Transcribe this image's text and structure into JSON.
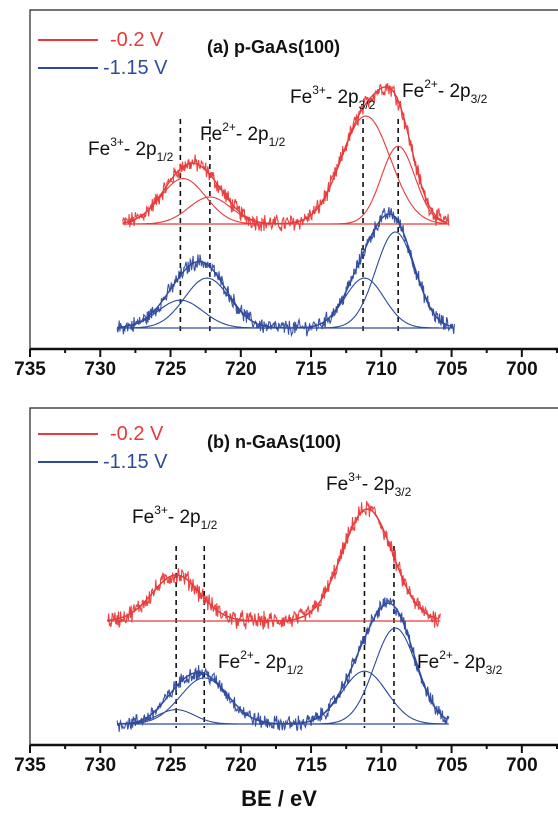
{
  "chart_data": [
    {
      "type": "line",
      "panel_title": "(a) p-GaAs(100)",
      "x_ticks": [
        "735",
        "730",
        "725",
        "720",
        "715",
        "710",
        "705",
        "700"
      ],
      "xlim": [
        735,
        697
      ],
      "x_reversed": true,
      "legend": {
        "placement": "top-left",
        "entries": [
          {
            "label": "-0.2 V",
            "color": "#e83a3a"
          },
          {
            "label": "-1.15 V",
            "color": "#2e4a9e"
          }
        ]
      },
      "series": [
        {
          "name": "-0.2 V",
          "color": "#e83a3a",
          "x_range": [
            728.4,
            705.2
          ],
          "baseline": 0,
          "peaks": [
            {
              "center": 724.1,
              "height": 0.42,
              "width": 1.6
            },
            {
              "center": 722.2,
              "height": 0.25,
              "width": 1.5
            },
            {
              "center": 711.1,
              "height": 1.0,
              "width": 1.75
            },
            {
              "center": 708.8,
              "height": 0.72,
              "width": 1.2
            }
          ]
        },
        {
          "name": "-1.15 V",
          "color": "#2e4a9e",
          "x_range": [
            728.8,
            704.8
          ],
          "baseline": 0,
          "peaks": [
            {
              "center": 724.3,
              "height": 0.29,
              "width": 1.6
            },
            {
              "center": 722.4,
              "height": 0.52,
              "width": 1.6
            },
            {
              "center": 711.2,
              "height": 0.52,
              "width": 1.4
            },
            {
              "center": 709.0,
              "height": 1.0,
              "width": 1.4
            }
          ]
        }
      ],
      "dashed_lines": [
        724.3,
        722.2,
        711.3,
        708.8
      ],
      "annotations": [
        {
          "ion": "Fe",
          "charge": "3+",
          "level": "- 2p",
          "sub": "1/2"
        },
        {
          "ion": "Fe",
          "charge": "2+",
          "level": "- 2p",
          "sub": "1/2"
        },
        {
          "ion": "Fe",
          "charge": "3+",
          "level": "- 2p",
          "sub": "3/2"
        },
        {
          "ion": "Fe",
          "charge": "2+",
          "level": "- 2p",
          "sub": "3/2"
        }
      ]
    },
    {
      "type": "line",
      "panel_title": "(b) n-GaAs(100)",
      "x_ticks": [
        "735",
        "730",
        "725",
        "720",
        "715",
        "710",
        "705",
        "700"
      ],
      "xlim": [
        735,
        697
      ],
      "x_reversed": true,
      "xlabel": "BE / eV",
      "legend": {
        "placement": "top-left",
        "entries": [
          {
            "label": "-0.2 V",
            "color": "#e83a3a"
          },
          {
            "label": "-1.15 V",
            "color": "#2e4a9e"
          }
        ]
      },
      "series": [
        {
          "name": "-0.2 V",
          "color": "#e83a3a",
          "x_range": [
            729.5,
            705.8
          ],
          "baseline": 0,
          "peaks": [
            {
              "center": 724.6,
              "height": 0.41,
              "width": 1.7
            },
            {
              "center": 711.0,
              "height": 1.0,
              "width": 1.8
            }
          ]
        },
        {
          "name": "-1.15 V",
          "color": "#2e4a9e",
          "x_range": [
            728.8,
            705.2
          ],
          "baseline": 0,
          "peaks": [
            {
              "center": 724.6,
              "height": 0.15,
              "width": 1.3
            },
            {
              "center": 722.6,
              "height": 0.48,
              "width": 1.7
            },
            {
              "center": 711.2,
              "height": 0.55,
              "width": 1.6
            },
            {
              "center": 709.0,
              "height": 1.0,
              "width": 1.5
            }
          ]
        }
      ],
      "dashed_lines": [
        724.6,
        722.6,
        711.2,
        709.1
      ],
      "annotations": [
        {
          "ion": "Fe",
          "charge": "3+",
          "level": "- 2p",
          "sub": "1/2"
        },
        {
          "ion": "Fe",
          "charge": "3+",
          "level": "- 2p",
          "sub": "3/2"
        },
        {
          "ion": "Fe",
          "charge": "2+",
          "level": "- 2p",
          "sub": "1/2"
        },
        {
          "ion": "Fe",
          "charge": "2+",
          "level": "- 2p",
          "sub": "3/2"
        }
      ]
    }
  ]
}
